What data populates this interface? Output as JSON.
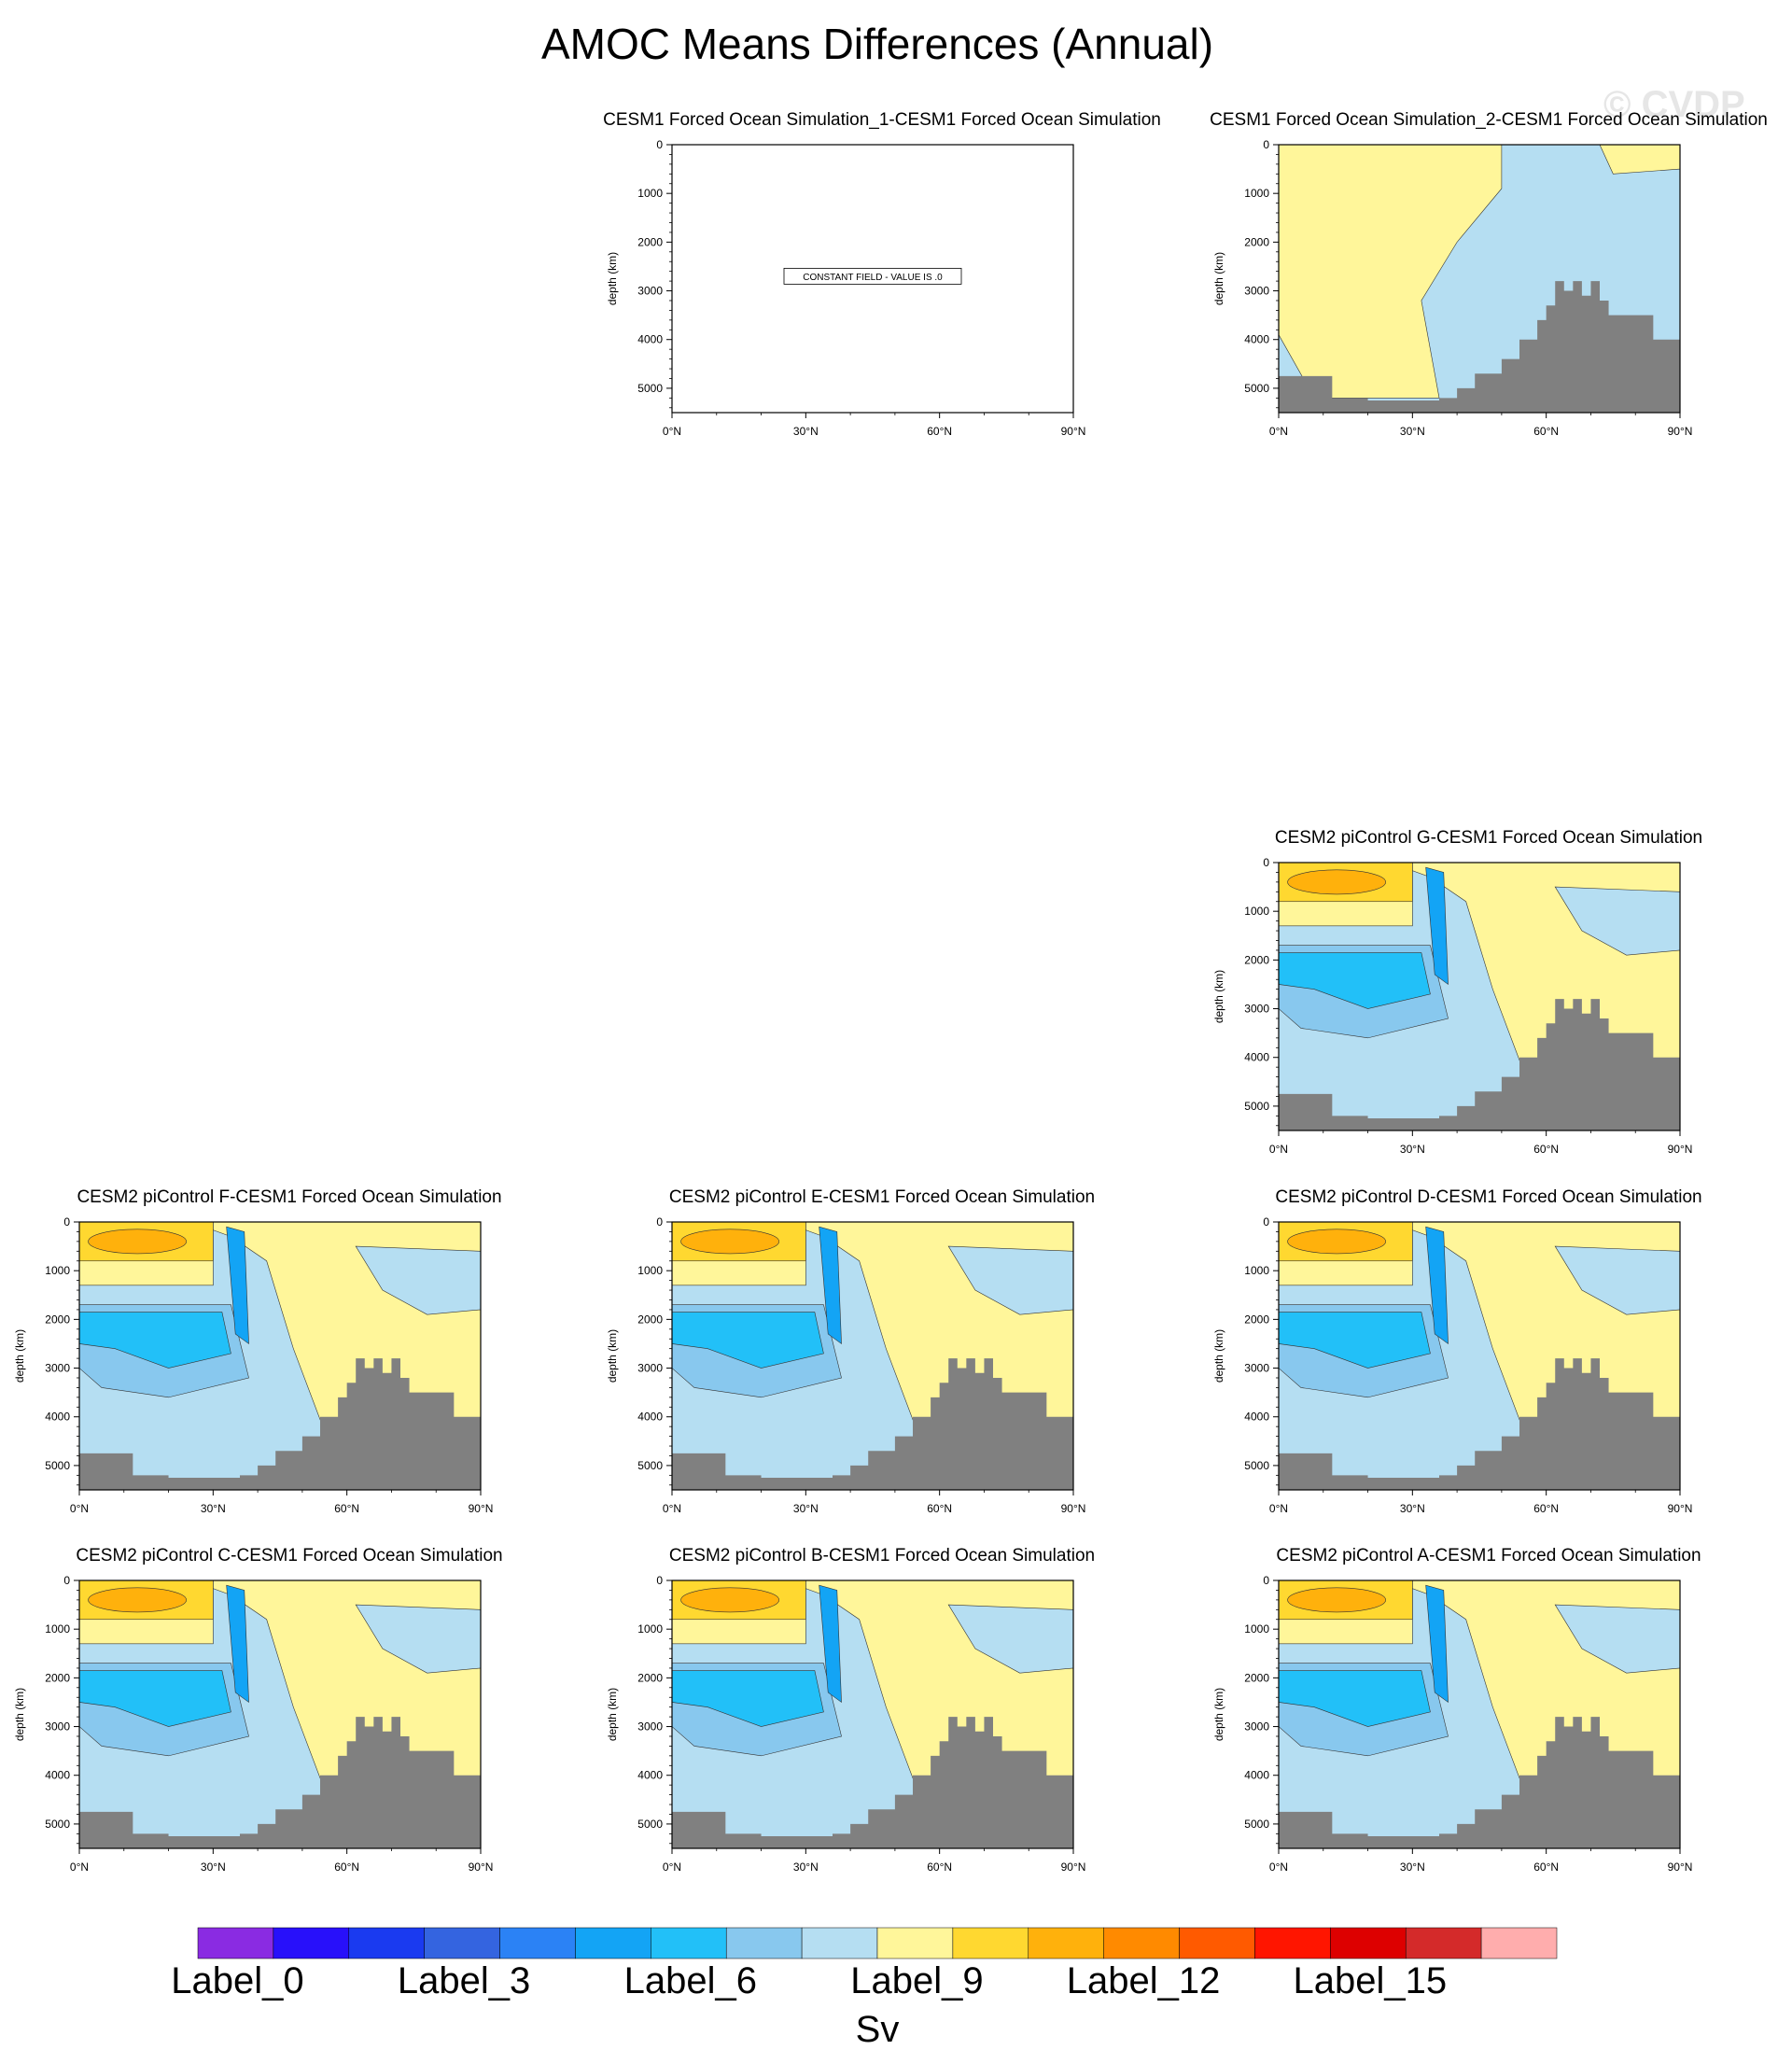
{
  "title": "AMOC Means Differences (Annual)",
  "watermark": "© CVDP",
  "axes": {
    "ylabel": "depth (km)",
    "yticks": [
      "0",
      "1000",
      "2000",
      "3000",
      "4000",
      "5000"
    ],
    "xticks": [
      "0°N",
      "30°N",
      "60°N",
      "90°N"
    ]
  },
  "panels": [
    {
      "id": "sim1",
      "title": "CESM1 Forced Ocean Simulation_1-CESM1 Forced Ocean Simulation",
      "kind": "constant",
      "note": "CONSTANT FIELD - VALUE IS .0"
    },
    {
      "id": "sim2",
      "title": "CESM1 Forced Ocean Simulation_2-CESM1 Forced Ocean Simulation",
      "kind": "positive"
    },
    {
      "id": "G",
      "title": "CESM2 piControl G-CESM1 Forced Ocean Simulation",
      "kind": "pattern"
    },
    {
      "id": "F",
      "title": "CESM2 piControl F-CESM1 Forced Ocean Simulation",
      "kind": "pattern"
    },
    {
      "id": "E",
      "title": "CESM2 piControl E-CESM1 Forced Ocean Simulation",
      "kind": "pattern"
    },
    {
      "id": "D",
      "title": "CESM2 piControl D-CESM1 Forced Ocean Simulation",
      "kind": "pattern"
    },
    {
      "id": "C",
      "title": "CESM2 piControl C-CESM1 Forced Ocean Simulation",
      "kind": "pattern"
    },
    {
      "id": "B",
      "title": "CESM2 piControl B-CESM1 Forced Ocean Simulation",
      "kind": "pattern"
    },
    {
      "id": "A",
      "title": "CESM2 piControl A-CESM1 Forced Ocean Simulation",
      "kind": "pattern"
    }
  ],
  "colorbar": {
    "colors": [
      "#8a2be2",
      "#2810fa",
      "#1a3af0",
      "#3464e0",
      "#2b82f5",
      "#13a4f5",
      "#22c0f8",
      "#88c8ee",
      "#b5def2",
      "#fff69a",
      "#ffd830",
      "#ffb10c",
      "#ff8a00",
      "#ff5a00",
      "#ff1500",
      "#dd0000",
      "#d42a2a",
      "#ffadad"
    ],
    "labels": [
      "Label_0",
      "Label_3",
      "Label_6",
      "Label_9",
      "Label_12",
      "Label_15"
    ],
    "units": "Sv"
  },
  "chart_data": {
    "type": "heatmap",
    "x_range_degN": [
      0,
      90
    ],
    "y_range_depth": [
      0,
      5500
    ],
    "y_axis_inverted": true,
    "bathymetry_sample_x_degN": [
      0,
      6,
      12,
      20,
      30,
      36,
      40,
      44,
      50,
      54,
      58,
      60,
      62,
      64,
      66,
      68,
      70,
      72,
      74,
      76,
      80,
      84,
      90
    ],
    "bathymetry_sample_depth": [
      4750,
      4750,
      5200,
      5250,
      5250,
      5200,
      5000,
      4700,
      4400,
      4000,
      3600,
      3300,
      2800,
      3000,
      2800,
      3100,
      2800,
      3200,
      3500,
      3500,
      3500,
      4000,
      4000
    ]
  }
}
